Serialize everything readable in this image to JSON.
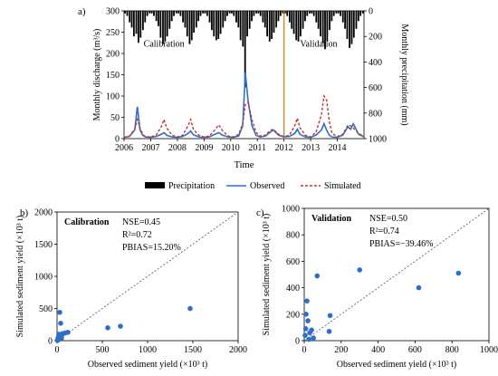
{
  "panels": {
    "a_label": "a)",
    "b_label": "b)",
    "c_label": "c)"
  },
  "chart_data": [
    {
      "type": "line",
      "panel": "a",
      "xlabel": "Time",
      "ylabel_left": "Monthly discharge (m³/s)",
      "ylabel_right": "Monthly precipitation (mm)",
      "xlim": [
        2006,
        2015
      ],
      "x_ticks": [
        2006,
        2007,
        2008,
        2009,
        2010,
        2011,
        2012,
        2013,
        2014
      ],
      "ylim_left": [
        0,
        300
      ],
      "y_ticks_left": [
        0,
        50,
        100,
        150,
        200,
        250,
        300
      ],
      "ylim_right": [
        0,
        1000
      ],
      "y_ticks_right": [
        0,
        200,
        400,
        600,
        800,
        1000
      ],
      "right_axis_inverted": true,
      "annotations": [
        {
          "text": "Calibration",
          "x": 2007.5,
          "y": 216
        },
        {
          "text": "Validation",
          "x": 2013.3,
          "y": 216
        }
      ],
      "divider_x": 2012,
      "legend": [
        "Precipitation",
        "Observed",
        "Simulated"
      ],
      "legend_position": "bottom",
      "colors": {
        "precipitation": "#000000",
        "observed": "#2f6ec8",
        "simulated": "#c0392b",
        "divider": "#d08a2a"
      },
      "series": [
        {
          "name": "Precipitation",
          "kind": "bar",
          "x": [
            2006.04,
            2006.12,
            2006.21,
            2006.29,
            2006.37,
            2006.46,
            2006.54,
            2006.62,
            2006.71,
            2006.79,
            2006.87,
            2006.96,
            2007.04,
            2007.12,
            2007.21,
            2007.29,
            2007.37,
            2007.46,
            2007.54,
            2007.62,
            2007.71,
            2007.79,
            2007.87,
            2007.96,
            2008.04,
            2008.12,
            2008.21,
            2008.29,
            2008.37,
            2008.46,
            2008.54,
            2008.62,
            2008.71,
            2008.79,
            2008.87,
            2008.96,
            2009.04,
            2009.12,
            2009.21,
            2009.29,
            2009.37,
            2009.46,
            2009.54,
            2009.62,
            2009.71,
            2009.79,
            2009.87,
            2009.96,
            2010.04,
            2010.12,
            2010.21,
            2010.29,
            2010.37,
            2010.46,
            2010.54,
            2010.62,
            2010.71,
            2010.79,
            2010.87,
            2010.96,
            2011.04,
            2011.12,
            2011.21,
            2011.29,
            2011.37,
            2011.46,
            2011.54,
            2011.62,
            2011.71,
            2011.79,
            2011.87,
            2011.96,
            2012.04,
            2012.12,
            2012.21,
            2012.29,
            2012.37,
            2012.46,
            2012.54,
            2012.62,
            2012.71,
            2012.79,
            2012.87,
            2012.96,
            2013.04,
            2013.12,
            2013.21,
            2013.29,
            2013.37,
            2013.46,
            2013.54,
            2013.62,
            2013.71,
            2013.79,
            2013.87,
            2013.96,
            2014.04,
            2014.12,
            2014.21,
            2014.29,
            2014.37,
            2014.46,
            2014.54,
            2014.62,
            2014.71,
            2014.79,
            2014.87,
            2014.96
          ],
          "values": [
            20,
            40,
            90,
            130,
            200,
            180,
            250,
            210,
            150,
            90,
            40,
            20,
            20,
            40,
            80,
            120,
            210,
            260,
            240,
            200,
            140,
            80,
            40,
            20,
            20,
            40,
            90,
            130,
            200,
            260,
            230,
            170,
            130,
            80,
            40,
            20,
            20,
            40,
            90,
            150,
            200,
            230,
            220,
            180,
            130,
            80,
            40,
            20,
            20,
            40,
            90,
            130,
            230,
            280,
            600,
            200,
            140,
            80,
            40,
            20,
            20,
            40,
            90,
            130,
            200,
            240,
            220,
            170,
            130,
            80,
            40,
            20,
            20,
            40,
            90,
            140,
            180,
            230,
            240,
            200,
            140,
            80,
            40,
            20,
            20,
            40,
            90,
            140,
            200,
            250,
            300,
            240,
            150,
            80,
            40,
            20,
            20,
            40,
            90,
            140,
            220,
            290,
            260,
            210,
            140,
            80,
            40,
            20
          ]
        },
        {
          "name": "Observed",
          "kind": "line",
          "x": [
            2006.0,
            2006.2,
            2006.4,
            2006.5,
            2006.6,
            2006.7,
            2006.8,
            2007.0,
            2007.2,
            2007.4,
            2007.5,
            2007.6,
            2007.8,
            2008.0,
            2008.2,
            2008.4,
            2008.5,
            2008.6,
            2008.8,
            2009.0,
            2009.2,
            2009.4,
            2009.55,
            2009.7,
            2009.9,
            2010.1,
            2010.3,
            2010.45,
            2010.55,
            2010.65,
            2010.8,
            2010.95,
            2011.1,
            2011.3,
            2011.5,
            2011.6,
            2011.8,
            2012.0,
            2012.2,
            2012.4,
            2012.5,
            2012.6,
            2012.8,
            2013.0,
            2013.2,
            2013.4,
            2013.5,
            2013.6,
            2013.7,
            2013.8,
            2014.0,
            2014.2,
            2014.4,
            2014.5,
            2014.6,
            2014.8,
            2015.0
          ],
          "values": [
            3,
            5,
            20,
            75,
            20,
            8,
            4,
            3,
            5,
            10,
            14,
            8,
            4,
            3,
            5,
            12,
            18,
            9,
            4,
            3,
            4,
            10,
            14,
            8,
            4,
            3,
            6,
            30,
            155,
            90,
            30,
            8,
            4,
            6,
            16,
            20,
            8,
            4,
            5,
            12,
            22,
            10,
            4,
            3,
            8,
            20,
            35,
            20,
            8,
            4,
            3,
            8,
            28,
            22,
            35,
            10,
            4
          ]
        },
        {
          "name": "Simulated",
          "kind": "line",
          "x": [
            2006.0,
            2006.2,
            2006.4,
            2006.5,
            2006.6,
            2006.7,
            2006.8,
            2007.0,
            2007.2,
            2007.4,
            2007.5,
            2007.6,
            2007.8,
            2008.0,
            2008.2,
            2008.4,
            2008.5,
            2008.6,
            2008.8,
            2009.0,
            2009.2,
            2009.4,
            2009.55,
            2009.7,
            2009.9,
            2010.1,
            2010.3,
            2010.45,
            2010.55,
            2010.65,
            2010.8,
            2010.95,
            2011.1,
            2011.3,
            2011.5,
            2011.6,
            2011.8,
            2012.0,
            2012.2,
            2012.4,
            2012.5,
            2012.6,
            2012.8,
            2013.0,
            2013.2,
            2013.4,
            2013.5,
            2013.6,
            2013.7,
            2013.8,
            2014.0,
            2014.2,
            2014.4,
            2014.5,
            2014.6,
            2014.8,
            2015.0
          ],
          "values": [
            3,
            6,
            22,
            45,
            25,
            10,
            5,
            4,
            8,
            28,
            45,
            25,
            8,
            4,
            8,
            30,
            45,
            22,
            8,
            4,
            6,
            20,
            32,
            18,
            6,
            4,
            10,
            35,
            80,
            85,
            45,
            15,
            6,
            8,
            20,
            22,
            10,
            5,
            8,
            30,
            48,
            25,
            8,
            4,
            15,
            55,
            100,
            90,
            40,
            12,
            5,
            10,
            32,
            30,
            25,
            12,
            5
          ]
        }
      ]
    },
    {
      "type": "scatter",
      "panel": "b",
      "xlabel": "Observed sediment yield (×10³ t)",
      "ylabel": "Simulated sediment yield (×10³ t)",
      "xlim": [
        0,
        2000
      ],
      "ylim": [
        0,
        2000
      ],
      "x_ticks": [
        0,
        500,
        1000,
        1500,
        2000
      ],
      "y_ticks": [
        0,
        500,
        1000,
        1500,
        2000
      ],
      "title_box": "Calibration",
      "stats": [
        "NSE=0.45",
        "R²=0.72",
        "PBIAS=15.20%"
      ],
      "one_to_one_line": true,
      "points": [
        {
          "x": 1470,
          "y": 500
        },
        {
          "x": 700,
          "y": 225
        },
        {
          "x": 560,
          "y": 200
        },
        {
          "x": 120,
          "y": 130
        },
        {
          "x": 90,
          "y": 120
        },
        {
          "x": 60,
          "y": 110
        },
        {
          "x": 30,
          "y": 440
        },
        {
          "x": 40,
          "y": 270
        },
        {
          "x": 20,
          "y": 100
        },
        {
          "x": 15,
          "y": 60
        },
        {
          "x": 10,
          "y": 30
        },
        {
          "x": 8,
          "y": 15
        },
        {
          "x": 25,
          "y": 20
        },
        {
          "x": 5,
          "y": 5
        },
        {
          "x": 50,
          "y": 40
        }
      ]
    },
    {
      "type": "scatter",
      "panel": "c",
      "xlabel": "Observed sediment yield (×10³ t)",
      "ylabel": "Simulated sediment yield (×10³ t)",
      "xlim": [
        0,
        1000
      ],
      "ylim": [
        0,
        1000
      ],
      "x_ticks": [
        0,
        200,
        400,
        600,
        800,
        1000
      ],
      "y_ticks": [
        0,
        200,
        400,
        600,
        800,
        1000
      ],
      "title_box": "Validation",
      "stats": [
        "NSE=0.50",
        "R²=0.74",
        "PBIAS=−39.46%"
      ],
      "one_to_one_line": true,
      "points": [
        {
          "x": 835,
          "y": 510
        },
        {
          "x": 620,
          "y": 400
        },
        {
          "x": 300,
          "y": 535
        },
        {
          "x": 70,
          "y": 490
        },
        {
          "x": 140,
          "y": 190
        },
        {
          "x": 135,
          "y": 70
        },
        {
          "x": 10,
          "y": 200
        },
        {
          "x": 15,
          "y": 300
        },
        {
          "x": 20,
          "y": 150
        },
        {
          "x": 40,
          "y": 80
        },
        {
          "x": 30,
          "y": 60
        },
        {
          "x": 8,
          "y": 90
        },
        {
          "x": 5,
          "y": 40
        },
        {
          "x": 50,
          "y": 20
        },
        {
          "x": 25,
          "y": 10
        }
      ]
    }
  ]
}
